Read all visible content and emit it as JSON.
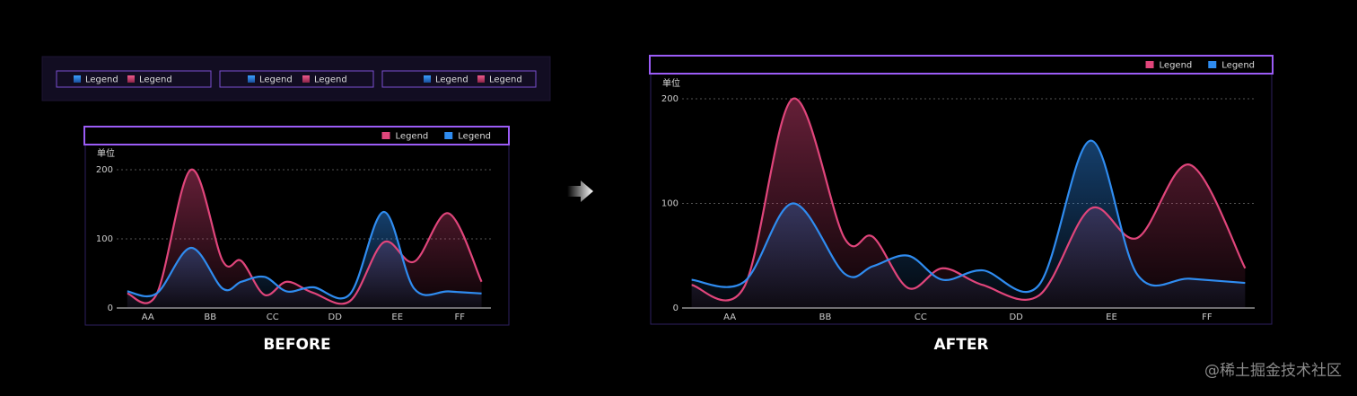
{
  "legend_strip": [
    {
      "items": [
        "Legend",
        "Legend"
      ]
    },
    {
      "items": [
        "Legend",
        "Legend"
      ]
    },
    {
      "items": [
        "Legend",
        "Legend"
      ]
    }
  ],
  "chart_data": [
    {
      "type": "line",
      "y_axis_label": "单位",
      "legend": "top-right",
      "grid": true,
      "smooth": true,
      "x": [
        0.67,
        1.14,
        1.69,
        2.2,
        2.5,
        2.87,
        3.23,
        3.65,
        4.24,
        4.78,
        5.27,
        5.82,
        6.35
      ],
      "xlim": [
        0.5,
        6.5
      ],
      "xticks": [
        {
          "value": 1,
          "label": "AA"
        },
        {
          "value": 2,
          "label": "BB"
        },
        {
          "value": 3,
          "label": "CC"
        },
        {
          "value": 4,
          "label": "DD"
        },
        {
          "value": 5,
          "label": "EE"
        },
        {
          "value": 6,
          "label": "FF"
        }
      ],
      "ylim": [
        0,
        200
      ],
      "yticks": [
        0,
        100,
        200
      ],
      "series": [
        {
          "name": "Legend",
          "color": "#e0457b",
          "values": [
            21,
            20,
            200,
            68,
            68,
            19,
            38,
            22,
            10,
            95,
            67,
            137,
            38
          ]
        },
        {
          "name": "Legend",
          "color": "#2f8cf0",
          "values": [
            24,
            21,
            87,
            28,
            38,
            45,
            24,
            30,
            20,
            139,
            28,
            24,
            21
          ]
        }
      ]
    },
    {
      "type": "line",
      "y_axis_label": "单位",
      "legend": "top-right",
      "grid": true,
      "smooth": true,
      "x": [
        0.6,
        1.15,
        1.66,
        2.2,
        2.5,
        2.87,
        3.23,
        3.65,
        4.24,
        4.78,
        5.27,
        5.82,
        6.4
      ],
      "xlim": [
        0.5,
        6.5
      ],
      "xticks": [
        {
          "value": 1,
          "label": "AA"
        },
        {
          "value": 2,
          "label": "BB"
        },
        {
          "value": 3,
          "label": "CC"
        },
        {
          "value": 4,
          "label": "DD"
        },
        {
          "value": 5,
          "label": "EE"
        },
        {
          "value": 6,
          "label": "FF"
        }
      ],
      "ylim": [
        0,
        200
      ],
      "yticks": [
        0,
        100,
        200
      ],
      "series": [
        {
          "name": "Legend",
          "color": "#e0457b",
          "values": [
            22,
            20,
            200,
            67,
            68,
            19,
            38,
            22,
            12,
            95,
            67,
            137,
            38
          ]
        },
        {
          "name": "Legend",
          "color": "#2f8cf0",
          "values": [
            27,
            25,
            100,
            33,
            40,
            50,
            27,
            36,
            22,
            160,
            32,
            28,
            24
          ]
        }
      ]
    }
  ],
  "captions": [
    "BEFORE",
    "AFTER"
  ],
  "watermark": "@稀土掘金技术社区"
}
